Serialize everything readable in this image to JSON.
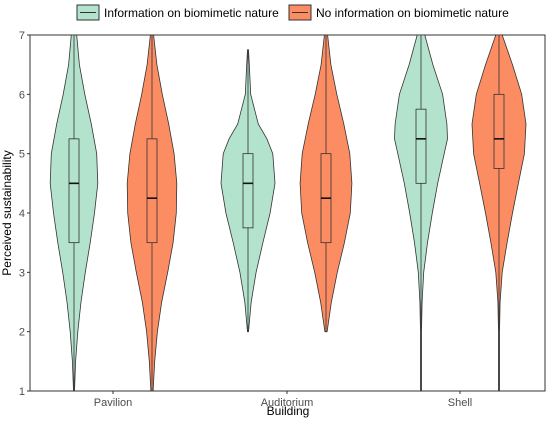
{
  "chart_data": {
    "type": "violin",
    "xlabel": "Building",
    "ylabel": "Perceived sustainability",
    "ylim": [
      1,
      7
    ],
    "yticks": [
      1,
      2,
      3,
      4,
      5,
      6,
      7
    ],
    "categories": [
      "Pavilion",
      "Auditorium",
      "Shell"
    ],
    "grid": false,
    "legend_position": "top",
    "series": [
      {
        "name": "Information on biomimetic nature",
        "color": "#b3e2cd",
        "values": [
          {
            "category": "Pavilion",
            "box": {
              "min": 1,
              "q1": 3.5,
              "median": 4.5,
              "q3": 5.25,
              "max": 7
            },
            "density_y": [
              1.0,
              1.5,
              2.0,
              2.5,
              3.0,
              3.5,
              4.0,
              4.5,
              5.0,
              5.5,
              6.0,
              6.5,
              7.0
            ],
            "density_w": [
              0.02,
              0.06,
              0.14,
              0.26,
              0.42,
              0.6,
              0.76,
              0.88,
              0.84,
              0.64,
              0.4,
              0.2,
              0.1
            ]
          },
          {
            "category": "Auditorium",
            "box": {
              "min": 2,
              "q1": 3.75,
              "median": 4.5,
              "q3": 5.0,
              "max": 6.75
            },
            "density_y": [
              2.0,
              2.5,
              3.0,
              3.5,
              4.0,
              4.5,
              5.0,
              5.25,
              5.5,
              6.0,
              6.5,
              6.75
            ],
            "density_w": [
              0.02,
              0.12,
              0.3,
              0.55,
              0.82,
              1.0,
              0.92,
              0.7,
              0.38,
              0.1,
              0.05,
              0.02
            ]
          },
          {
            "category": "Shell",
            "box": {
              "min": 1,
              "q1": 4.5,
              "median": 5.25,
              "q3": 5.75,
              "max": 7
            },
            "density_y": [
              1.0,
              2.0,
              2.5,
              3.0,
              3.5,
              4.0,
              4.5,
              5.0,
              5.25,
              5.5,
              6.0,
              6.5,
              7.0
            ],
            "density_w": [
              0.02,
              0.02,
              0.04,
              0.1,
              0.24,
              0.42,
              0.62,
              0.86,
              0.98,
              0.96,
              0.8,
              0.44,
              0.14
            ]
          }
        ]
      },
      {
        "name": "No information on biomimetic nature",
        "color": "#fc8d62",
        "values": [
          {
            "category": "Pavilion",
            "box": {
              "min": 1,
              "q1": 3.5,
              "median": 4.25,
              "q3": 5.25,
              "max": 7
            },
            "density_y": [
              1.0,
              1.5,
              2.0,
              2.5,
              3.0,
              3.5,
              4.0,
              4.5,
              5.0,
              5.5,
              6.0,
              6.5,
              7.0
            ],
            "density_w": [
              0.04,
              0.1,
              0.2,
              0.36,
              0.58,
              0.78,
              0.9,
              0.92,
              0.82,
              0.62,
              0.38,
              0.18,
              0.06
            ]
          },
          {
            "category": "Auditorium",
            "box": {
              "min": 2,
              "q1": 3.5,
              "median": 4.25,
              "q3": 5.0,
              "max": 7
            },
            "density_y": [
              2.0,
              2.5,
              3.0,
              3.5,
              4.0,
              4.5,
              5.0,
              5.5,
              6.0,
              6.5,
              7.0
            ],
            "density_w": [
              0.04,
              0.2,
              0.42,
              0.68,
              0.9,
              0.96,
              0.88,
              0.66,
              0.4,
              0.18,
              0.06
            ]
          },
          {
            "category": "Shell",
            "box": {
              "min": 1,
              "q1": 4.75,
              "median": 5.25,
              "q3": 6.0,
              "max": 7
            },
            "density_y": [
              1.0,
              2.0,
              2.5,
              3.0,
              3.5,
              4.0,
              4.5,
              5.0,
              5.5,
              6.0,
              6.5,
              7.0
            ],
            "density_w": [
              0.02,
              0.02,
              0.04,
              0.12,
              0.3,
              0.5,
              0.72,
              0.94,
              1.0,
              0.84,
              0.5,
              0.12
            ]
          }
        ]
      }
    ]
  }
}
